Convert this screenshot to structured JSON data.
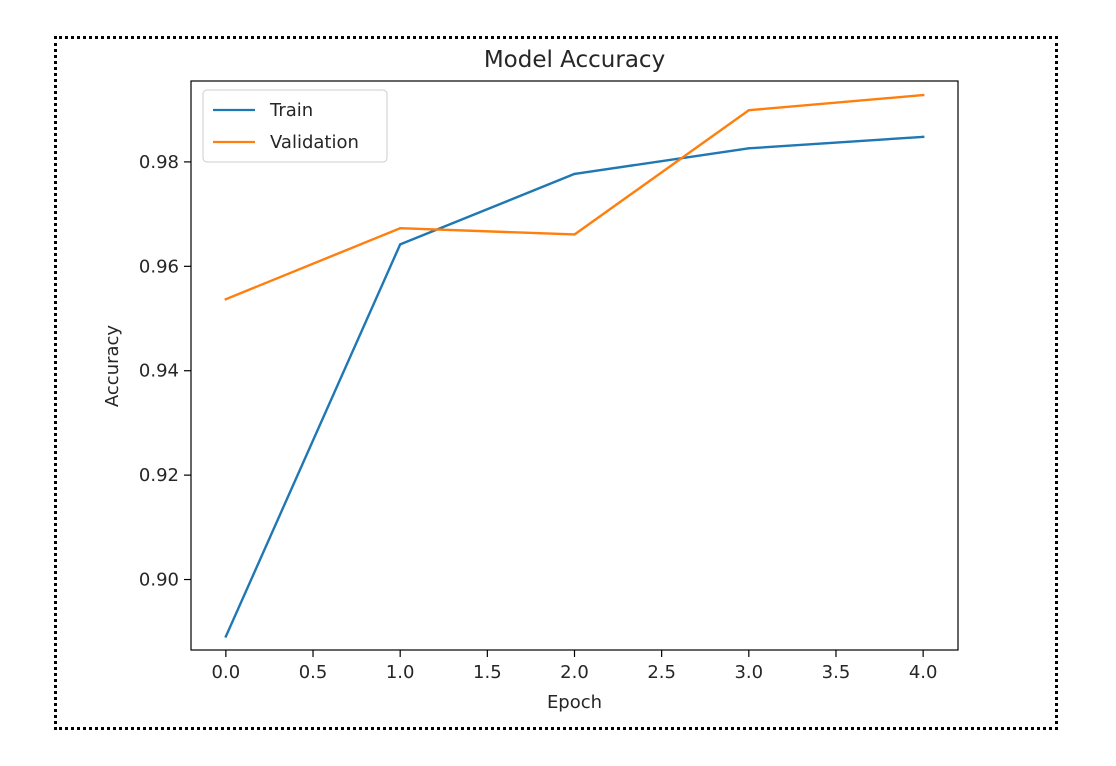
{
  "chart_data": {
    "type": "line",
    "title": "Model Accuracy",
    "xlabel": "Epoch",
    "ylabel": "Accuracy",
    "x": [
      0,
      1,
      2,
      3,
      4
    ],
    "xlim": [
      -0.2,
      4.2
    ],
    "ylim": [
      0.8865,
      0.9955
    ],
    "xticks": [
      0.0,
      0.5,
      1.0,
      1.5,
      2.0,
      2.5,
      3.0,
      3.5,
      4.0
    ],
    "xtick_labels": [
      "0.0",
      "0.5",
      "1.0",
      "1.5",
      "2.0",
      "2.5",
      "3.0",
      "3.5",
      "4.0"
    ],
    "yticks": [
      0.9,
      0.92,
      0.94,
      0.96,
      0.98
    ],
    "ytick_labels": [
      "0.90",
      "0.92",
      "0.94",
      "0.96",
      "0.98"
    ],
    "grid": false,
    "legend_position": "upper-left",
    "series": [
      {
        "name": "Train",
        "color": "#1f77b4",
        "values": [
          0.8891,
          0.9642,
          0.9777,
          0.9826,
          0.9848
        ]
      },
      {
        "name": "Validation",
        "color": "#ff7f0e",
        "values": [
          0.9537,
          0.9673,
          0.9661,
          0.9899,
          0.9928
        ]
      }
    ]
  }
}
